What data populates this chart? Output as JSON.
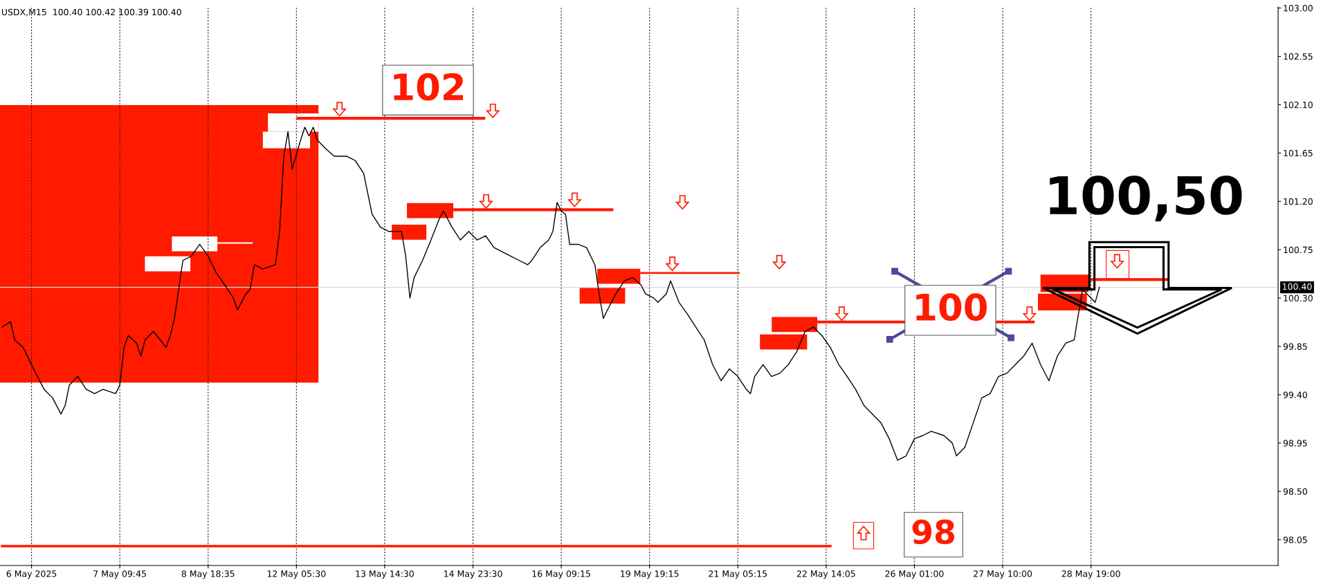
{
  "chart_data": {
    "type": "line",
    "title": "USDX,M15  100.40 100.42 100.39 100.40",
    "categories": [
      null,
      null,
      null,
      null,
      null,
      null,
      null,
      "6 May 2025",
      null,
      null,
      null,
      null,
      null,
      null,
      null,
      null,
      null,
      null,
      null,
      null,
      null,
      null,
      null,
      null,
      null,
      null,
      null,
      null,
      "7 May 09:45",
      null,
      null,
      null,
      null,
      null,
      null,
      null,
      null,
      null,
      null,
      null,
      null,
      null,
      null,
      null,
      null,
      null,
      null,
      null,
      null,
      "8 May 18:35",
      null,
      null,
      null,
      null,
      null,
      null,
      null,
      null,
      null,
      null,
      null,
      null,
      null,
      null,
      null,
      null,
      null,
      null,
      null,
      null,
      "12 May 05:30",
      null,
      null,
      null,
      null,
      null,
      null,
      null,
      null,
      null,
      null,
      null,
      null,
      null,
      null,
      null,
      null,
      null,
      null,
      null,
      null,
      "13 May 14:30",
      null,
      null,
      null,
      null,
      null,
      null,
      null,
      null,
      null,
      null,
      null,
      null,
      null,
      null,
      null,
      null,
      null,
      null,
      null,
      null,
      "14 May 23:30",
      null,
      null,
      null,
      null,
      null,
      null,
      null,
      null,
      null,
      null,
      null,
      null,
      null,
      null,
      null,
      null,
      null,
      null,
      null,
      null,
      "16 May 09:15",
      null,
      null,
      null,
      null,
      null,
      null,
      null,
      null,
      null,
      null,
      null,
      null,
      null,
      null,
      null,
      null,
      null,
      null,
      null,
      null,
      "19 May 19:15",
      null,
      null,
      null,
      null,
      null,
      null,
      null,
      null,
      null,
      null,
      null,
      null,
      null,
      null,
      null,
      null,
      null,
      null,
      null,
      null,
      "21 May 05:15",
      null,
      null,
      null,
      null,
      null,
      null,
      null,
      null,
      null,
      null,
      null,
      null,
      null,
      null,
      null,
      null,
      null,
      null,
      null,
      null,
      "22 May 14:05",
      null,
      null,
      null,
      null,
      null,
      null,
      null,
      null,
      null,
      null,
      null,
      null,
      null,
      null,
      null,
      null,
      null,
      null,
      null,
      null,
      "26 May 01:00",
      null,
      null,
      null,
      null,
      null,
      null,
      null,
      null,
      null,
      null,
      null,
      null,
      null,
      null,
      null,
      null,
      null,
      null,
      null,
      null,
      "27 May 10:00",
      null,
      null,
      null,
      null,
      null,
      null,
      null,
      null,
      null,
      null,
      null,
      null,
      null,
      null,
      null,
      null,
      null,
      null,
      null,
      null,
      "28 May 19:00",
      null,
      null,
      null,
      null,
      null,
      null,
      null,
      null,
      null,
      null,
      null,
      null,
      null,
      null,
      null,
      null,
      null,
      null,
      null,
      null,
      null,
      null,
      null,
      null,
      null,
      null,
      null,
      null,
      null,
      null,
      null,
      null,
      null,
      null,
      null,
      null,
      null,
      null,
      null,
      null,
      null,
      null,
      null,
      null
    ],
    "series": [
      {
        "color": "#000000",
        "values": [
          100.03,
          null,
          100.08,
          99.91,
          null,
          99.84,
          null,
          null,
          99.6,
          null,
          99.45,
          null,
          99.37,
          null,
          99.22,
          99.3,
          99.49,
          null,
          99.57,
          null,
          99.45,
          null,
          99.41,
          null,
          99.45,
          null,
          null,
          99.41,
          99.49,
          99.84,
          99.95,
          null,
          99.88,
          99.76,
          99.91,
          null,
          99.99,
          null,
          null,
          99.84,
          99.95,
          100.11,
          100.38,
          100.65,
          null,
          100.69,
          null,
          100.8,
          null,
          100.69,
          null,
          100.53,
          null,
          100.42,
          null,
          100.3,
          100.19,
          null,
          100.34,
          100.38,
          100.61,
          null,
          100.57,
          null,
          null,
          100.61,
          100.92,
          101.62,
          101.85,
          101.5,
          null,
          101.77,
          101.89,
          101.81,
          101.89,
          101.77,
          null,
          101.69,
          null,
          101.62,
          null,
          null,
          101.62,
          null,
          101.58,
          null,
          101.46,
          101.27,
          101.08,
          null,
          100.96,
          null,
          100.92,
          null,
          null,
          100.92,
          100.69,
          100.3,
          100.49,
          null,
          100.65,
          null,
          100.84,
          null,
          101.04,
          101.11,
          null,
          100.96,
          null,
          100.84,
          null,
          100.92,
          null,
          100.84,
          null,
          100.88,
          null,
          100.77,
          null,
          100.73,
          null,
          100.69,
          null,
          100.65,
          null,
          100.61,
          100.65,
          null,
          100.77,
          null,
          100.84,
          100.92,
          101.19,
          101.11,
          101.08,
          100.8,
          null,
          100.8,
          null,
          100.77,
          null,
          100.61,
          100.34,
          100.11,
          100.19,
          null,
          100.34,
          null,
          100.46,
          null,
          100.49,
          null,
          100.42,
          100.34,
          null,
          100.3,
          100.26,
          null,
          100.34,
          100.46,
          null,
          100.26,
          null,
          100.15,
          null,
          100.03,
          null,
          99.91,
          null,
          99.68,
          null,
          99.53,
          null,
          99.64,
          null,
          99.57,
          null,
          99.45,
          99.41,
          99.57,
          null,
          99.68,
          null,
          99.57,
          null,
          99.6,
          null,
          99.68,
          null,
          99.8,
          null,
          99.99,
          null,
          100.03,
          null,
          99.95,
          null,
          99.84,
          null,
          99.68,
          null,
          99.57,
          null,
          99.45,
          null,
          99.3,
          null,
          99.22,
          null,
          99.14,
          null,
          98.99,
          null,
          98.79,
          null,
          98.83,
          null,
          98.99,
          null,
          99.02,
          null,
          99.06,
          null,
          null,
          99.02,
          null,
          98.95,
          98.83,
          null,
          98.91,
          null,
          99.14,
          null,
          99.37,
          null,
          99.41,
          null,
          99.57,
          null,
          99.6,
          null,
          99.68,
          null,
          99.76,
          null,
          99.88,
          null,
          99.68,
          null,
          99.53,
          null,
          99.76,
          null,
          99.88,
          null,
          99.91,
          100.15,
          100.38,
          100.34,
          null,
          100.26,
          100.4,
          null,
          null,
          null,
          null,
          null,
          null,
          null,
          null,
          null,
          null,
          null,
          null,
          null,
          null,
          null,
          null,
          null,
          null,
          null,
          null,
          null,
          null,
          null,
          null,
          null,
          null,
          null,
          null,
          null,
          null,
          null,
          null,
          null,
          null,
          null,
          null,
          null,
          null,
          null,
          null,
          null,
          null
        ]
      },
      {
        "type": "line",
        "color": "#ff1a00",
        "values": [
          97.99,
          null,
          null,
          null,
          null,
          null,
          null,
          null,
          null,
          null,
          null,
          null,
          null,
          null,
          null,
          null,
          null,
          null,
          null,
          null,
          null,
          null,
          null,
          null,
          null,
          null,
          null,
          null,
          null,
          null,
          null,
          null,
          null,
          null,
          null,
          null,
          null,
          null,
          null,
          null,
          null,
          null,
          null,
          null,
          null,
          null,
          null,
          null,
          null,
          null,
          null,
          null,
          null,
          null,
          null,
          null,
          null,
          null,
          null,
          null,
          null,
          null,
          null,
          null,
          null,
          null,
          null,
          null,
          null,
          null,
          null,
          null,
          null,
          null,
          null,
          null,
          null,
          null,
          null,
          null,
          null,
          null,
          null,
          null,
          null,
          null,
          null,
          null,
          null,
          null,
          null,
          null,
          null,
          null,
          null,
          null,
          null,
          null,
          null,
          null,
          null,
          null,
          null,
          null,
          null,
          null,
          null,
          null,
          null,
          null,
          null,
          null,
          null,
          null,
          null,
          null,
          null,
          null,
          null,
          null,
          null,
          null,
          null,
          null,
          null,
          null,
          null,
          null,
          null,
          null,
          null,
          null,
          null,
          null,
          null,
          null,
          null,
          null,
          null,
          null,
          null,
          null,
          null,
          null,
          null,
          null,
          null,
          null,
          null,
          null,
          null,
          null,
          null,
          null,
          null,
          null,
          null,
          null,
          null,
          null,
          null,
          null,
          null,
          null,
          null,
          null,
          null,
          null,
          null,
          null,
          null,
          null,
          null,
          null,
          null,
          null,
          null,
          null,
          null,
          null,
          null,
          null,
          null,
          null,
          null,
          null,
          null,
          null,
          null,
          null,
          null,
          null,
          null,
          null,
          null,
          null,
          null,
          97.99,
          null,
          null,
          null,
          null,
          null,
          null,
          null,
          null,
          null,
          null,
          null,
          null,
          null,
          null,
          null,
          null,
          null,
          null,
          null,
          null,
          null,
          null,
          null,
          null,
          null,
          null,
          null,
          null,
          null,
          null,
          null,
          null,
          null,
          null,
          null,
          null,
          null,
          null,
          null,
          null,
          null,
          null,
          null,
          null,
          null,
          null,
          null,
          null,
          null,
          null,
          null,
          null,
          null,
          null,
          null,
          null,
          null,
          null,
          null,
          null,
          null,
          null,
          null,
          null,
          null,
          null,
          null,
          null,
          null,
          null,
          null,
          null,
          null,
          null,
          null,
          null,
          null,
          null,
          null,
          null,
          null,
          null,
          null,
          null,
          null,
          null,
          null,
          null,
          null,
          null,
          null,
          null,
          null,
          null,
          null,
          null,
          null,
          null,
          null,
          null,
          null,
          null,
          null,
          null,
          null,
          null
        ]
      }
    ],
    "ylim": [
      97.81,
      103.01
    ],
    "yticks": [
      {
        "value": 98.05,
        "label": "98.05"
      },
      {
        "value": 98.5,
        "label": "98.50"
      },
      {
        "value": 98.95,
        "label": "98.95"
      },
      {
        "value": 99.4,
        "label": "99.40"
      },
      {
        "value": 99.85,
        "label": "99.85"
      },
      {
        "value": 100.3,
        "label": "100.30"
      },
      {
        "value": 100.75,
        "label": "100.75"
      },
      {
        "value": 101.2,
        "label": "101.20"
      },
      {
        "value": 101.65,
        "label": "101.65"
      },
      {
        "value": 102.1,
        "label": "102.10"
      },
      {
        "value": 102.55,
        "label": "102.55"
      },
      {
        "value": 103.0,
        "label": "103.00"
      }
    ],
    "grid": "x",
    "ref_lines": [
      {
        "axis": "y",
        "value": 100.4,
        "label": "100.40",
        "color": "#d9d9d9"
      }
    ],
    "annotations": [
      "102",
      "100",
      "98",
      "100,50"
    ]
  }
}
